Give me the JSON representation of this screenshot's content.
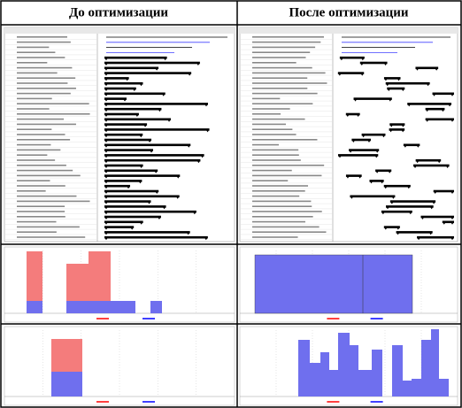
{
  "table": {
    "headers": [
      "До оптимизации",
      "После оптимизации"
    ]
  }
}
